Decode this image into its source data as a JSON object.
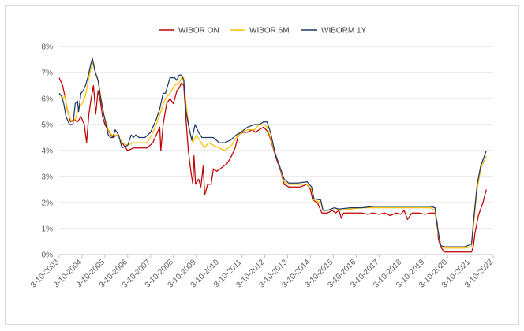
{
  "chart_data": {
    "type": "line",
    "title": "",
    "xlabel": "",
    "ylabel": "",
    "legend_position": "top",
    "grid": true,
    "ylim": [
      0,
      8
    ],
    "y_ticks": [
      "0%",
      "1%",
      "2%",
      "3%",
      "4%",
      "5%",
      "6%",
      "7%",
      "8%"
    ],
    "x_ticks": [
      "3-10-2003",
      "3-10-2004",
      "3-10-2005",
      "3-10-2006",
      "3-10-2007",
      "3-10-2008",
      "3-10-2009",
      "3-10-2010",
      "3-10-2011",
      "3-10-2012",
      "3-10-2013",
      "3-10-2014",
      "3-10-2015",
      "3-10-2016",
      "3-10-2017",
      "3-10-2018",
      "3-10-2019",
      "3-10-2020",
      "3-10-2021",
      "3-10-2022"
    ],
    "series": [
      {
        "name": "WIBOR ON",
        "color": "#c00000",
        "points": [
          [
            2003.75,
            6.8
          ],
          [
            2003.9,
            6.5
          ],
          [
            2004.0,
            6.1
          ],
          [
            2004.1,
            5.6
          ],
          [
            2004.25,
            5.1
          ],
          [
            2004.4,
            5.2
          ],
          [
            2004.55,
            5.1
          ],
          [
            2004.7,
            5.3
          ],
          [
            2004.85,
            5.0
          ],
          [
            2004.95,
            4.3
          ],
          [
            2005.05,
            5.4
          ],
          [
            2005.15,
            6.0
          ],
          [
            2005.25,
            6.5
          ],
          [
            2005.35,
            5.4
          ],
          [
            2005.45,
            6.3
          ],
          [
            2005.55,
            5.9
          ],
          [
            2005.65,
            5.3
          ],
          [
            2005.75,
            5.0
          ],
          [
            2005.95,
            4.7
          ],
          [
            2006.1,
            4.5
          ],
          [
            2006.3,
            4.6
          ],
          [
            2006.5,
            4.3
          ],
          [
            2006.75,
            4.0
          ],
          [
            2007.0,
            4.1
          ],
          [
            2007.3,
            4.1
          ],
          [
            2007.6,
            4.1
          ],
          [
            2007.85,
            4.3
          ],
          [
            2008.0,
            4.6
          ],
          [
            2008.15,
            4.9
          ],
          [
            2008.2,
            4.0
          ],
          [
            2008.3,
            5.0
          ],
          [
            2008.45,
            5.8
          ],
          [
            2008.6,
            6.0
          ],
          [
            2008.75,
            5.8
          ],
          [
            2008.9,
            6.3
          ],
          [
            2009.0,
            6.4
          ],
          [
            2009.1,
            6.6
          ],
          [
            2009.2,
            6.5
          ],
          [
            2009.3,
            5.2
          ],
          [
            2009.4,
            4.0
          ],
          [
            2009.5,
            3.3
          ],
          [
            2009.6,
            2.7
          ],
          [
            2009.65,
            3.8
          ],
          [
            2009.72,
            2.7
          ],
          [
            2009.85,
            2.9
          ],
          [
            2009.95,
            2.6
          ],
          [
            2010.05,
            3.4
          ],
          [
            2010.12,
            2.3
          ],
          [
            2010.25,
            2.7
          ],
          [
            2010.4,
            2.7
          ],
          [
            2010.5,
            3.3
          ],
          [
            2010.65,
            3.2
          ],
          [
            2010.8,
            3.3
          ],
          [
            2010.95,
            3.4
          ],
          [
            2011.1,
            3.5
          ],
          [
            2011.3,
            3.8
          ],
          [
            2011.45,
            4.1
          ],
          [
            2011.6,
            4.6
          ],
          [
            2011.8,
            4.7
          ],
          [
            2012.0,
            4.7
          ],
          [
            2012.2,
            4.8
          ],
          [
            2012.35,
            4.7
          ],
          [
            2012.5,
            4.8
          ],
          [
            2012.7,
            4.9
          ],
          [
            2012.8,
            4.8
          ],
          [
            2012.9,
            4.7
          ],
          [
            2013.05,
            4.3
          ],
          [
            2013.25,
            3.7
          ],
          [
            2013.45,
            3.2
          ],
          [
            2013.6,
            2.7
          ],
          [
            2013.8,
            2.6
          ],
          [
            2014.0,
            2.6
          ],
          [
            2014.3,
            2.6
          ],
          [
            2014.6,
            2.7
          ],
          [
            2014.75,
            2.5
          ],
          [
            2014.85,
            2.1
          ],
          [
            2015.05,
            2.0
          ],
          [
            2015.25,
            1.6
          ],
          [
            2015.5,
            1.6
          ],
          [
            2015.7,
            1.7
          ],
          [
            2015.85,
            1.6
          ],
          [
            2016.0,
            1.7
          ],
          [
            2016.1,
            1.4
          ],
          [
            2016.2,
            1.6
          ],
          [
            2016.5,
            1.6
          ],
          [
            2016.75,
            1.6
          ],
          [
            2017.0,
            1.6
          ],
          [
            2017.25,
            1.55
          ],
          [
            2017.5,
            1.6
          ],
          [
            2017.75,
            1.55
          ],
          [
            2018.0,
            1.6
          ],
          [
            2018.25,
            1.5
          ],
          [
            2018.5,
            1.6
          ],
          [
            2018.7,
            1.55
          ],
          [
            2018.85,
            1.7
          ],
          [
            2019.0,
            1.35
          ],
          [
            2019.2,
            1.6
          ],
          [
            2019.5,
            1.6
          ],
          [
            2019.75,
            1.55
          ],
          [
            2020.0,
            1.6
          ],
          [
            2020.2,
            1.6
          ],
          [
            2020.3,
            1.2
          ],
          [
            2020.35,
            0.6
          ],
          [
            2020.45,
            0.3
          ],
          [
            2020.6,
            0.1
          ],
          [
            2020.8,
            0.1
          ],
          [
            2021.0,
            0.1
          ],
          [
            2021.3,
            0.1
          ],
          [
            2021.6,
            0.1
          ],
          [
            2021.8,
            0.1
          ],
          [
            2021.88,
            0.3
          ],
          [
            2021.95,
            0.8
          ],
          [
            2022.1,
            1.5
          ],
          [
            2022.3,
            2.0
          ],
          [
            2022.45,
            2.5
          ]
        ]
      },
      {
        "name": "WIBOR 6M",
        "color": "#ffc000",
        "points": [
          [
            2003.75,
            6.2
          ],
          [
            2003.9,
            6.0
          ],
          [
            2004.0,
            6.1
          ],
          [
            2004.15,
            5.4
          ],
          [
            2004.3,
            5.1
          ],
          [
            2004.45,
            5.2
          ],
          [
            2004.6,
            5.6
          ],
          [
            2004.75,
            5.8
          ],
          [
            2004.9,
            6.1
          ],
          [
            2005.0,
            6.6
          ],
          [
            2005.15,
            7.2
          ],
          [
            2005.25,
            7.4
          ],
          [
            2005.35,
            6.9
          ],
          [
            2005.45,
            6.7
          ],
          [
            2005.55,
            6.2
          ],
          [
            2005.7,
            5.4
          ],
          [
            2005.9,
            4.8
          ],
          [
            2006.05,
            4.6
          ],
          [
            2006.3,
            4.6
          ],
          [
            2006.5,
            4.3
          ],
          [
            2006.75,
            4.2
          ],
          [
            2007.0,
            4.3
          ],
          [
            2007.3,
            4.3
          ],
          [
            2007.6,
            4.3
          ],
          [
            2007.8,
            4.6
          ],
          [
            2008.0,
            5.0
          ],
          [
            2008.2,
            5.5
          ],
          [
            2008.4,
            6.0
          ],
          [
            2008.6,
            6.2
          ],
          [
            2008.8,
            6.5
          ],
          [
            2009.0,
            6.6
          ],
          [
            2009.1,
            6.8
          ],
          [
            2009.2,
            6.8
          ],
          [
            2009.3,
            5.8
          ],
          [
            2009.45,
            4.8
          ],
          [
            2009.6,
            4.3
          ],
          [
            2009.75,
            4.6
          ],
          [
            2009.9,
            4.4
          ],
          [
            2010.1,
            4.1
          ],
          [
            2010.3,
            4.3
          ],
          [
            2010.5,
            4.2
          ],
          [
            2010.75,
            4.1
          ],
          [
            2011.0,
            4.0
          ],
          [
            2011.3,
            4.2
          ],
          [
            2011.5,
            4.5
          ],
          [
            2011.75,
            4.7
          ],
          [
            2012.0,
            4.8
          ],
          [
            2012.3,
            4.8
          ],
          [
            2012.5,
            5.0
          ],
          [
            2012.7,
            5.0
          ],
          [
            2012.85,
            4.9
          ],
          [
            2013.0,
            4.5
          ],
          [
            2013.2,
            3.9
          ],
          [
            2013.4,
            3.4
          ],
          [
            2013.6,
            2.8
          ],
          [
            2013.8,
            2.7
          ],
          [
            2014.2,
            2.7
          ],
          [
            2014.6,
            2.7
          ],
          [
            2014.8,
            2.5
          ],
          [
            2014.9,
            2.1
          ],
          [
            2015.2,
            2.0
          ],
          [
            2015.3,
            1.7
          ],
          [
            2015.5,
            1.7
          ],
          [
            2015.8,
            1.8
          ],
          [
            2016.0,
            1.7
          ],
          [
            2016.5,
            1.75
          ],
          [
            2017.0,
            1.8
          ],
          [
            2017.5,
            1.8
          ],
          [
            2018.0,
            1.8
          ],
          [
            2018.5,
            1.8
          ],
          [
            2019.0,
            1.8
          ],
          [
            2019.5,
            1.8
          ],
          [
            2020.0,
            1.8
          ],
          [
            2020.2,
            1.7
          ],
          [
            2020.3,
            1.0
          ],
          [
            2020.45,
            0.35
          ],
          [
            2020.6,
            0.25
          ],
          [
            2021.0,
            0.25
          ],
          [
            2021.5,
            0.25
          ],
          [
            2021.8,
            0.3
          ],
          [
            2021.9,
            1.2
          ],
          [
            2022.05,
            2.5
          ],
          [
            2022.2,
            3.3
          ],
          [
            2022.45,
            3.8
          ]
        ]
      },
      {
        "name": "WIBORM 1Y",
        "color": "#203864",
        "points": [
          [
            2003.75,
            6.2
          ],
          [
            2003.85,
            6.1
          ],
          [
            2003.95,
            5.8
          ],
          [
            2004.05,
            5.3
          ],
          [
            2004.2,
            5.0
          ],
          [
            2004.35,
            5.0
          ],
          [
            2004.45,
            5.8
          ],
          [
            2004.55,
            5.9
          ],
          [
            2004.6,
            5.5
          ],
          [
            2004.7,
            6.2
          ],
          [
            2004.8,
            6.3
          ],
          [
            2004.9,
            6.5
          ],
          [
            2005.0,
            6.8
          ],
          [
            2005.1,
            7.2
          ],
          [
            2005.2,
            7.55
          ],
          [
            2005.3,
            7.1
          ],
          [
            2005.45,
            6.7
          ],
          [
            2005.55,
            6.1
          ],
          [
            2005.7,
            5.4
          ],
          [
            2005.9,
            4.6
          ],
          [
            2006.0,
            4.5
          ],
          [
            2006.1,
            4.5
          ],
          [
            2006.2,
            4.8
          ],
          [
            2006.35,
            4.6
          ],
          [
            2006.5,
            4.1
          ],
          [
            2006.75,
            4.2
          ],
          [
            2006.9,
            4.6
          ],
          [
            2007.0,
            4.5
          ],
          [
            2007.1,
            4.6
          ],
          [
            2007.25,
            4.5
          ],
          [
            2007.5,
            4.5
          ],
          [
            2007.75,
            4.7
          ],
          [
            2008.0,
            5.2
          ],
          [
            2008.15,
            5.6
          ],
          [
            2008.3,
            6.2
          ],
          [
            2008.4,
            6.2
          ],
          [
            2008.5,
            6.5
          ],
          [
            2008.6,
            6.8
          ],
          [
            2008.8,
            6.8
          ],
          [
            2008.9,
            6.7
          ],
          [
            2009.0,
            6.9
          ],
          [
            2009.1,
            6.9
          ],
          [
            2009.2,
            6.7
          ],
          [
            2009.3,
            5.5
          ],
          [
            2009.45,
            4.8
          ],
          [
            2009.55,
            4.4
          ],
          [
            2009.7,
            5.0
          ],
          [
            2009.85,
            4.7
          ],
          [
            2010.0,
            4.5
          ],
          [
            2010.25,
            4.5
          ],
          [
            2010.5,
            4.5
          ],
          [
            2010.75,
            4.3
          ],
          [
            2011.0,
            4.3
          ],
          [
            2011.25,
            4.4
          ],
          [
            2011.5,
            4.6
          ],
          [
            2011.7,
            4.7
          ],
          [
            2012.0,
            4.9
          ],
          [
            2012.3,
            5.0
          ],
          [
            2012.5,
            5.0
          ],
          [
            2012.7,
            5.1
          ],
          [
            2012.85,
            5.1
          ],
          [
            2013.0,
            4.7
          ],
          [
            2013.2,
            3.9
          ],
          [
            2013.4,
            3.4
          ],
          [
            2013.6,
            2.9
          ],
          [
            2013.8,
            2.75
          ],
          [
            2014.2,
            2.75
          ],
          [
            2014.6,
            2.8
          ],
          [
            2014.8,
            2.6
          ],
          [
            2014.9,
            2.15
          ],
          [
            2015.2,
            2.1
          ],
          [
            2015.3,
            1.7
          ],
          [
            2015.5,
            1.7
          ],
          [
            2015.8,
            1.8
          ],
          [
            2016.0,
            1.75
          ],
          [
            2016.5,
            1.8
          ],
          [
            2017.0,
            1.8
          ],
          [
            2017.5,
            1.85
          ],
          [
            2018.0,
            1.85
          ],
          [
            2018.5,
            1.85
          ],
          [
            2019.0,
            1.85
          ],
          [
            2019.5,
            1.85
          ],
          [
            2020.0,
            1.85
          ],
          [
            2020.2,
            1.8
          ],
          [
            2020.3,
            1.1
          ],
          [
            2020.45,
            0.35
          ],
          [
            2020.6,
            0.3
          ],
          [
            2021.0,
            0.3
          ],
          [
            2021.5,
            0.3
          ],
          [
            2021.8,
            0.4
          ],
          [
            2021.9,
            1.4
          ],
          [
            2022.05,
            2.7
          ],
          [
            2022.2,
            3.4
          ],
          [
            2022.45,
            4.0
          ]
        ]
      }
    ]
  }
}
